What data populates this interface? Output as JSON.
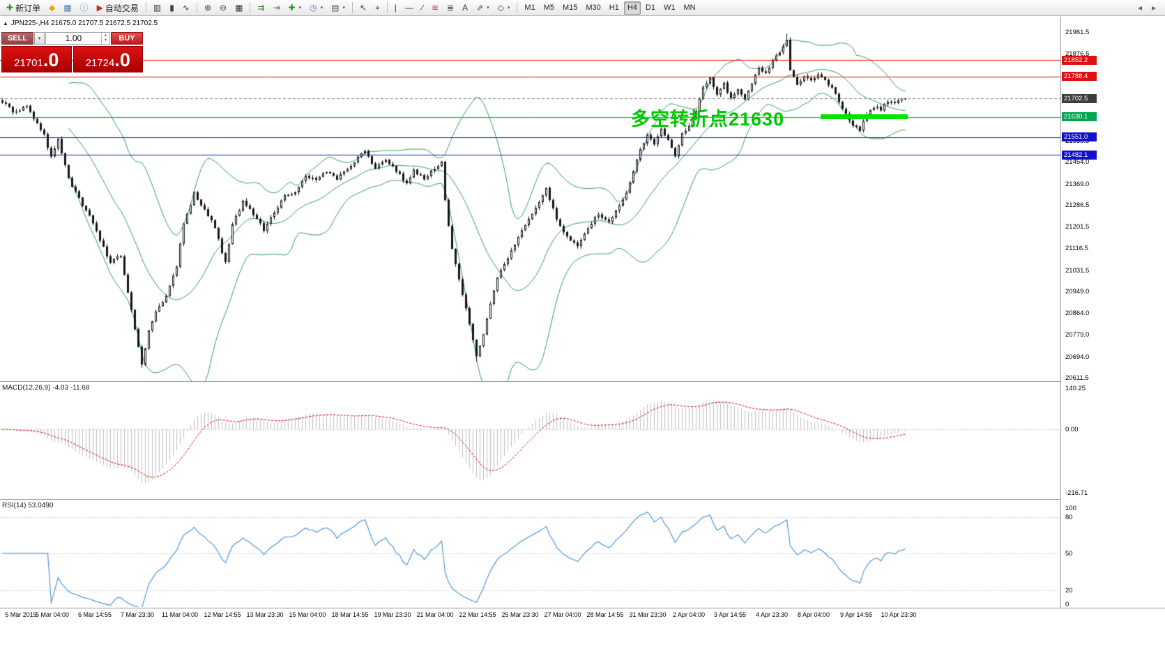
{
  "toolbar": {
    "groups": [
      {
        "items": [
          {
            "name": "new-order-button",
            "glyph": "✚",
            "color": "#1f9b1f",
            "label": "新订单"
          },
          {
            "name": "charts-menu-button",
            "glyph": "◆",
            "color": "#dfa918"
          },
          {
            "name": "market-watch-button",
            "glyph": "▦",
            "color": "#4a7ab5"
          },
          {
            "name": "info-button",
            "glyph": "ⓘ",
            "color": "#4a7ab5"
          },
          {
            "name": "autotrading-button",
            "glyph": "▶",
            "color": "#c62828",
            "label": "自动交易"
          }
        ]
      },
      {
        "items": [
          {
            "name": "bar-chart-button",
            "glyph": "▥",
            "color": "#3a3a3a"
          },
          {
            "name": "candlestick-chart-button",
            "glyph": "▮",
            "color": "#3a3a3a"
          },
          {
            "name": "line-chart-button",
            "glyph": "∿",
            "color": "#3a3a3a"
          }
        ]
      },
      {
        "items": [
          {
            "name": "zoom-in-button",
            "glyph": "⊕",
            "color": "#3a3a3a"
          },
          {
            "name": "zoom-out-button",
            "glyph": "⊖",
            "color": "#3a3a3a"
          },
          {
            "name": "tile-windows-button",
            "glyph": "▦",
            "color": "#3a3a3a"
          }
        ]
      },
      {
        "items": [
          {
            "name": "auto-scroll-button",
            "glyph": "⇉",
            "color": "#2e7d32"
          },
          {
            "name": "chart-shift-button",
            "glyph": "⇥",
            "color": "#2e7d32"
          },
          {
            "name": "indicators-button",
            "glyph": "✚",
            "color": "#1f9b1f",
            "caret": true
          },
          {
            "name": "periods-button",
            "glyph": "◷",
            "color": "#4a7ab5",
            "caret": true
          },
          {
            "name": "templates-button",
            "glyph": "▤",
            "color": "#5a5a5a",
            "caret": true
          }
        ]
      },
      {
        "items": [
          {
            "name": "cursor-button",
            "glyph": "↖",
            "color": "#3a3a3a"
          },
          {
            "name": "crosshair-button",
            "glyph": "⌖",
            "color": "#3a3a3a"
          }
        ]
      },
      {
        "items": [
          {
            "name": "vertical-line-button",
            "glyph": "|",
            "color": "#3a3a3a"
          },
          {
            "name": "horizontal-line-button",
            "glyph": "—",
            "color": "#3a3a3a"
          },
          {
            "name": "trendline-button",
            "glyph": "∕",
            "color": "#3a3a3a"
          },
          {
            "name": "fibonacci-button",
            "glyph": "≋",
            "color": "#a33a3a"
          },
          {
            "name": "channel-button",
            "glyph": "≣",
            "color": "#3a3a3a"
          },
          {
            "name": "text-label-button",
            "glyph": "A",
            "color": "#3a3a3a"
          },
          {
            "name": "arrows-button",
            "glyph": "⇗",
            "color": "#3a3a3a",
            "caret": true
          },
          {
            "name": "shapes-button",
            "glyph": "◇",
            "color": "#3a3a3a",
            "caret": true
          }
        ]
      },
      {
        "items": [
          {
            "name": "timeframe-m1-button",
            "label": "M1",
            "kind": "tf"
          },
          {
            "name": "timeframe-m5-button",
            "label": "M5",
            "kind": "tf"
          },
          {
            "name": "timeframe-m15-button",
            "label": "M15",
            "kind": "tf"
          },
          {
            "name": "timeframe-m30-button",
            "label": "M30",
            "kind": "tf"
          },
          {
            "name": "timeframe-h1-button",
            "label": "H1",
            "kind": "tf"
          },
          {
            "name": "timeframe-h4-button",
            "label": "H4",
            "kind": "tf",
            "active": true
          },
          {
            "name": "timeframe-d1-button",
            "label": "D1",
            "kind": "tf"
          },
          {
            "name": "timeframe-w1-button",
            "label": "W1",
            "kind": "tf"
          },
          {
            "name": "timeframe-mn-button",
            "label": "MN",
            "kind": "tf"
          }
        ]
      }
    ],
    "right_items": [
      {
        "name": "toolbar-scroll-left-button",
        "glyph": "◂"
      },
      {
        "name": "toolbar-scroll-right-button",
        "glyph": "▸"
      }
    ]
  },
  "symbol_info": {
    "icon": "▲",
    "text": "JPN225-,H4  21675.0 21707.5 21672.5 21702.5"
  },
  "trade_panel": {
    "sell_label": "SELL",
    "buy_label": "BUY",
    "volume": "1.00",
    "sell_price": "21701.0",
    "buy_price": "21724.0"
  },
  "annotation": {
    "text": "多空转折点21630",
    "color": "#00c800"
  },
  "chart_data": {
    "type": "candlestick",
    "symbol": "JPN225-",
    "timeframe": "H4",
    "ohlc_display": {
      "open": "21675.0",
      "high": "21707.5",
      "low": "21672.5",
      "close": "21702.5"
    },
    "candle_count": 260,
    "last_close": 21702.5,
    "candle_bull": "#ffffff",
    "candle_bear": "#141414",
    "candle_outline": "#141414",
    "price_axis": {
      "max": 21961.5,
      "min": 20611.5,
      "ticks": [
        21961.5,
        21876.5,
        21791.5,
        21706.5,
        21621.5,
        21536.5,
        21454.0,
        21369.0,
        21286.5,
        21201.5,
        21116.5,
        21031.5,
        20949.0,
        20864.0,
        20779.0,
        20694.0,
        20611.5
      ]
    },
    "levels": [
      {
        "price": 21852.2,
        "color": "#dd1111"
      },
      {
        "price": 21788.4,
        "color": "#dd1111"
      },
      {
        "price": 21630.1,
        "color": "#00a651"
      },
      {
        "price": 21551.0,
        "color": "#1111cc"
      },
      {
        "price": 21482.1,
        "color": "#1111cc"
      }
    ],
    "current_price": {
      "value": 21702.5,
      "badge_color": "#3c3c3c"
    },
    "support_highlight": {
      "price": 21630.0,
      "start_index": 235,
      "end_index": 260,
      "thickness": 7,
      "color": "#00e400"
    },
    "close_waypoints": [
      [
        0,
        21690
      ],
      [
        3,
        21650
      ],
      [
        7,
        21670
      ],
      [
        12,
        21560
      ],
      [
        14,
        21470
      ],
      [
        16,
        21545
      ],
      [
        19,
        21390
      ],
      [
        22,
        21310
      ],
      [
        25,
        21240
      ],
      [
        28,
        21150
      ],
      [
        31,
        21060
      ],
      [
        34,
        21090
      ],
      [
        37,
        20880
      ],
      [
        40,
        20660
      ],
      [
        42,
        20790
      ],
      [
        44,
        20870
      ],
      [
        47,
        20930
      ],
      [
        50,
        21050
      ],
      [
        52,
        21210
      ],
      [
        55,
        21330
      ],
      [
        58,
        21270
      ],
      [
        61,
        21200
      ],
      [
        63,
        21100
      ],
      [
        64,
        21060
      ],
      [
        66,
        21210
      ],
      [
        69,
        21300
      ],
      [
        72,
        21250
      ],
      [
        75,
        21190
      ],
      [
        78,
        21260
      ],
      [
        81,
        21320
      ],
      [
        84,
        21340
      ],
      [
        87,
        21400
      ],
      [
        90,
        21380
      ],
      [
        93,
        21420
      ],
      [
        96,
        21390
      ],
      [
        99,
        21430
      ],
      [
        102,
        21470
      ],
      [
        104,
        21500
      ],
      [
        107,
        21430
      ],
      [
        110,
        21460
      ],
      [
        113,
        21420
      ],
      [
        116,
        21370
      ],
      [
        118,
        21420
      ],
      [
        121,
        21390
      ],
      [
        124,
        21430
      ],
      [
        126,
        21450
      ],
      [
        127,
        21300
      ],
      [
        129,
        21120
      ],
      [
        131,
        21000
      ],
      [
        133,
        20880
      ],
      [
        136,
        20700
      ],
      [
        138,
        20780
      ],
      [
        140,
        20900
      ],
      [
        142,
        21000
      ],
      [
        145,
        21080
      ],
      [
        148,
        21160
      ],
      [
        151,
        21230
      ],
      [
        154,
        21300
      ],
      [
        156,
        21350
      ],
      [
        159,
        21230
      ],
      [
        162,
        21160
      ],
      [
        165,
        21120
      ],
      [
        168,
        21200
      ],
      [
        171,
        21250
      ],
      [
        174,
        21220
      ],
      [
        177,
        21280
      ],
      [
        179,
        21330
      ],
      [
        181,
        21420
      ],
      [
        183,
        21500
      ],
      [
        185,
        21560
      ],
      [
        187,
        21520
      ],
      [
        189,
        21580
      ],
      [
        191,
        21540
      ],
      [
        193,
        21480
      ],
      [
        195,
        21560
      ],
      [
        197,
        21600
      ],
      [
        199,
        21650
      ],
      [
        201,
        21740
      ],
      [
        203,
        21780
      ],
      [
        205,
        21720
      ],
      [
        207,
        21760
      ],
      [
        209,
        21700
      ],
      [
        211,
        21740
      ],
      [
        213,
        21700
      ],
      [
        215,
        21760
      ],
      [
        217,
        21820
      ],
      [
        219,
        21800
      ],
      [
        221,
        21850
      ],
      [
        223,
        21880
      ],
      [
        225,
        21930
      ],
      [
        226,
        21810
      ],
      [
        228,
        21760
      ],
      [
        230,
        21790
      ],
      [
        232,
        21770
      ],
      [
        234,
        21800
      ],
      [
        236,
        21780
      ],
      [
        238,
        21740
      ],
      [
        240,
        21690
      ],
      [
        242,
        21640
      ],
      [
        244,
        21600
      ],
      [
        246,
        21580
      ],
      [
        248,
        21640
      ],
      [
        250,
        21670
      ],
      [
        252,
        21660
      ],
      [
        254,
        21690
      ],
      [
        256,
        21680
      ],
      [
        258,
        21700
      ]
    ],
    "high_overrides": [
      [
        225,
        21955
      ]
    ],
    "low_overrides": [
      [
        40,
        20650
      ],
      [
        136,
        20675
      ]
    ],
    "indicators": {
      "bollinger": {
        "period": 20,
        "deviation": 2,
        "color": "#2f9e5f"
      },
      "macd": {
        "label": "MACD(12,26,9) -4.03 -11.68",
        "fast": 12,
        "slow": 26,
        "signal": 9,
        "value": -4.03,
        "signal_value": -11.68,
        "axis": [
          140.25,
          0,
          -216.71
        ],
        "hist_color": "#c0c0c0",
        "signal_color": "#dd0000"
      },
      "rsi": {
        "label": "RSI(14) 53.0490",
        "period": 14,
        "value": 53.049,
        "axis": [
          100,
          80,
          50,
          20,
          0
        ],
        "level_lines": [
          80,
          50,
          20
        ],
        "color": "#3f8fde"
      }
    },
    "time_axis": [
      [
        "5 Mar 2019",
        30
      ],
      [
        "5 Mar 04:00",
        75
      ],
      [
        "6 Mar 14:55",
        136
      ],
      [
        "7 Mar 23:30",
        197
      ],
      [
        "11 Mar 04:00",
        258
      ],
      [
        "12 Mar 14:55",
        319
      ],
      [
        "13 Mar 23:30",
        380
      ],
      [
        "15 Mar 04:00",
        441
      ],
      [
        "18 Mar 14:55",
        502
      ],
      [
        "19 Mar 23:30",
        563
      ],
      [
        "21 Mar 04:00",
        624
      ],
      [
        "22 Mar 14:55",
        685
      ],
      [
        "25 Mar 23:30",
        746
      ],
      [
        "27 Mar 04:00",
        807
      ],
      [
        "28 Mar 14:55",
        868
      ],
      [
        "31 Mar 23:30",
        929
      ],
      [
        "2 Apr 04:00",
        988
      ],
      [
        "3 Apr 14:55",
        1047
      ],
      [
        "4 Apr 23:30",
        1107
      ],
      [
        "8 Apr 04:00",
        1167
      ],
      [
        "9 Apr 14:55",
        1228
      ],
      [
        "10 Apr 23:30",
        1289
      ]
    ]
  }
}
